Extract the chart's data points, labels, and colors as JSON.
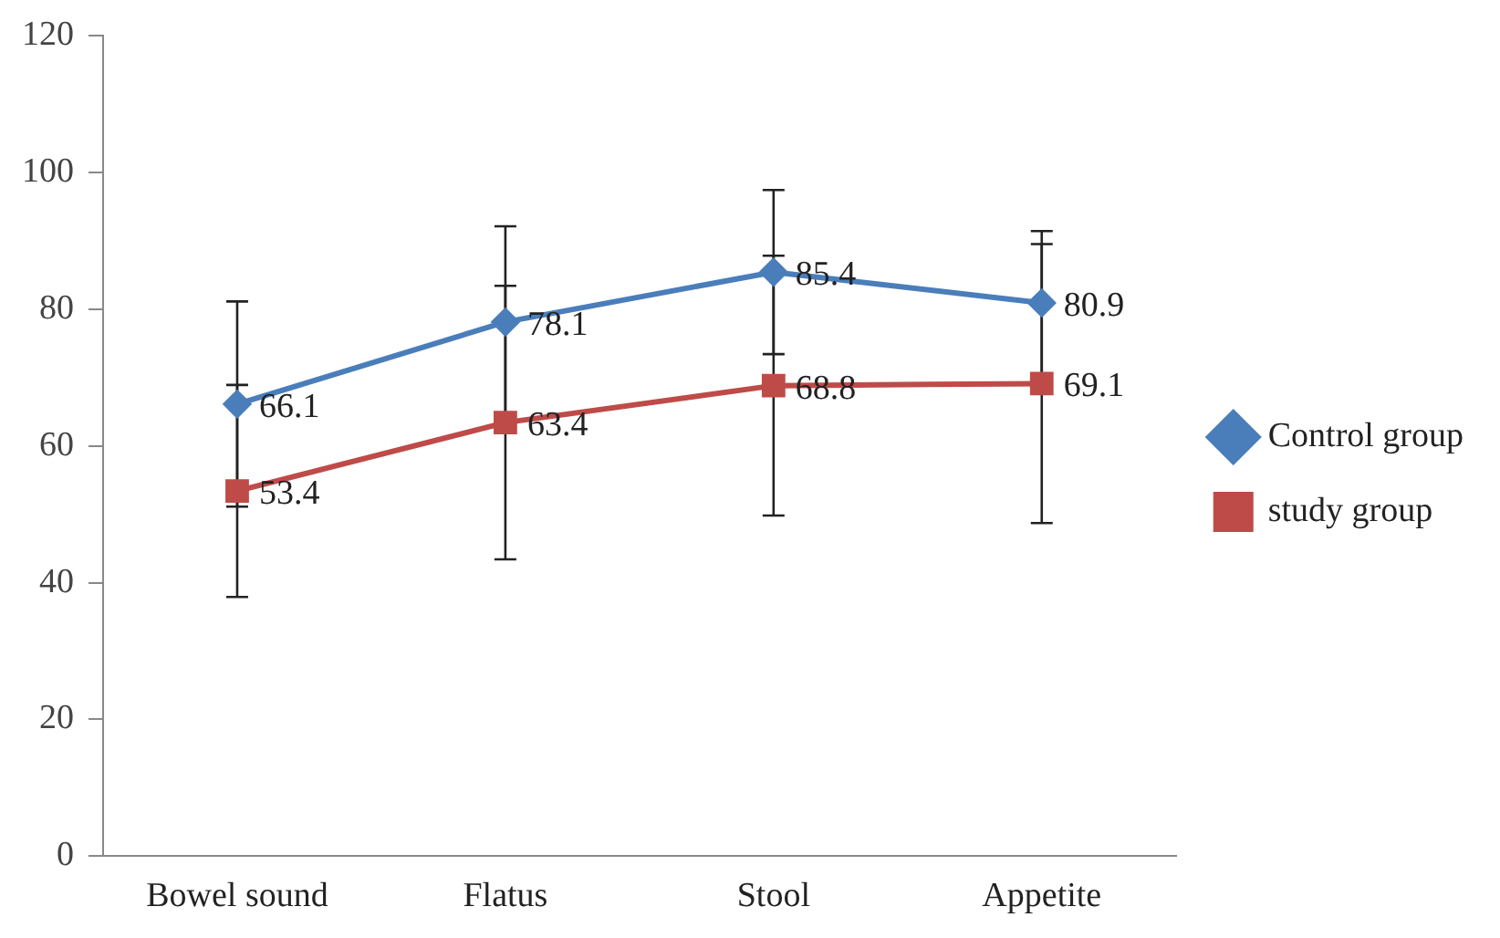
{
  "chart_data": {
    "type": "line",
    "categories": [
      "Bowel sound",
      "Flatus",
      "Stool",
      "Appetite"
    ],
    "series": [
      {
        "name": "Control group",
        "color": "#4a7ebb",
        "marker": "diamond",
        "values": [
          66.1,
          78.1,
          85.4,
          80.9
        ],
        "errors": [
          15,
          14,
          12,
          10.5
        ]
      },
      {
        "name": "study group",
        "color": "#be4b48",
        "marker": "square",
        "values": [
          53.4,
          63.4,
          68.8,
          69.1
        ],
        "errors": [
          15.5,
          20,
          19,
          20.4
        ]
      }
    ],
    "ylim": [
      0,
      120
    ],
    "yticks": [
      0,
      20,
      40,
      60,
      80,
      100,
      120
    ],
    "grid": false,
    "legend": "right",
    "data_labels": true
  }
}
